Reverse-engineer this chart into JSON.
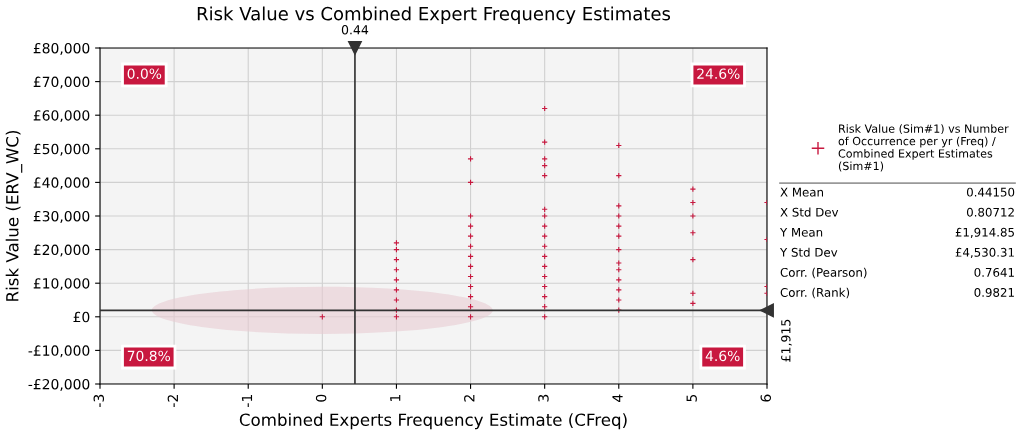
{
  "chart_data": {
    "type": "scatter",
    "title": "Risk Value vs Combined Expert Frequency Estimates",
    "xlabel": "Combined Experts Frequency Estimate (CFreq)",
    "ylabel": "Risk Value (ERV_WC)",
    "xlim": [
      -3,
      6
    ],
    "xticks": [
      -3,
      -2,
      -1,
      0,
      1,
      2,
      3,
      4,
      5,
      6
    ],
    "ylim": [
      -20000,
      80000
    ],
    "yticks": [
      {
        "value": -20000,
        "label": "-£20,000"
      },
      {
        "value": -10000,
        "label": "-£10,000"
      },
      {
        "value": 0,
        "label": "£0"
      },
      {
        "value": 10000,
        "label": "£10,000"
      },
      {
        "value": 20000,
        "label": "£20,000"
      },
      {
        "value": 30000,
        "label": "£30,000"
      },
      {
        "value": 40000,
        "label": "£40,000"
      },
      {
        "value": 50000,
        "label": "£50,000"
      },
      {
        "value": 60000,
        "label": "£60,000"
      },
      {
        "value": 70000,
        "label": "£70,000"
      },
      {
        "value": 80000,
        "label": "£80,000"
      }
    ],
    "grid": true,
    "legend": "right",
    "marker": "cross",
    "series": [
      {
        "name": "Risk Value (Sim#1) vs Number of Occurrence per yr (Freq) / Combined Expert Estimates (Sim#1)",
        "color": "#c8183f",
        "x": [
          0,
          1,
          1,
          1,
          1,
          1,
          1,
          1,
          1,
          1,
          2,
          2,
          2,
          2,
          2,
          2,
          2,
          2,
          2,
          2,
          2,
          2,
          2,
          3,
          3,
          3,
          3,
          3,
          3,
          3,
          3,
          3,
          3,
          3,
          3,
          3,
          3,
          3,
          3,
          3,
          4,
          4,
          4,
          4,
          4,
          4,
          4,
          4,
          4,
          4,
          4,
          4,
          4,
          5,
          5,
          5,
          5,
          5,
          5,
          5,
          6,
          6,
          6,
          6
        ],
        "values": [
          0,
          0,
          2000,
          5000,
          8000,
          11000,
          14000,
          17000,
          20000,
          22000,
          0,
          3000,
          6000,
          9000,
          12000,
          15000,
          18000,
          21000,
          24000,
          27000,
          30000,
          40000,
          47000,
          0,
          3000,
          6000,
          9000,
          12000,
          15000,
          18000,
          21000,
          24000,
          27000,
          30000,
          32000,
          42000,
          45000,
          47000,
          52000,
          62000,
          2000,
          5000,
          8000,
          11000,
          14000,
          16000,
          20000,
          24000,
          27000,
          30000,
          33000,
          42000,
          51000,
          4000,
          7000,
          17000,
          25000,
          30000,
          34000,
          38000,
          7000,
          9000,
          23000,
          34000
        ]
      }
    ],
    "ref_lines": [
      {
        "axis": "x",
        "value": 0.44,
        "label": "0.44",
        "color": "#333333"
      },
      {
        "axis": "y",
        "value": 1915,
        "label": "£1,915",
        "color": "#333333"
      }
    ],
    "annotations": [
      "0.0%",
      "24.6%",
      "70.8%",
      "4.6%",
      "X Mean\t0.44150",
      "X Std Dev\t0.80712",
      "Y Mean\t£1,914.85",
      "Y Std Dev\t£4,530.31",
      "Corr. (Pearson)\t0.7641",
      "Corr. (Rank)\t0.9821"
    ]
  }
}
